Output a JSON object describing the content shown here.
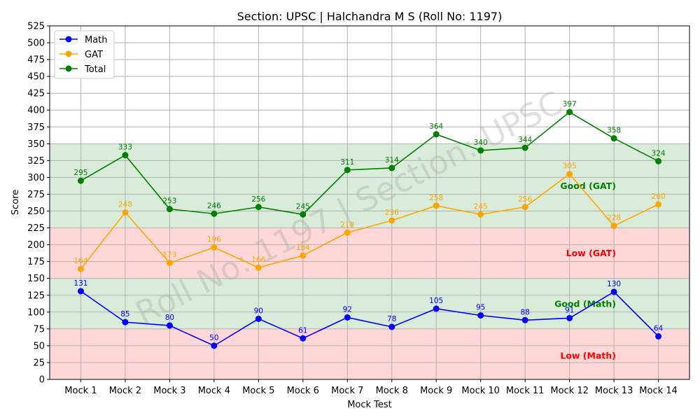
{
  "chart_data": {
    "type": "line",
    "title": "Section: UPSC | Halchandra M S (Roll No: 1197)",
    "xlabel": "Mock Test",
    "ylabel": "Score",
    "ylim": [
      0,
      525
    ],
    "yticks": [
      0,
      25,
      50,
      75,
      100,
      125,
      150,
      175,
      200,
      225,
      250,
      275,
      300,
      325,
      350,
      375,
      400,
      425,
      450,
      475,
      500,
      525
    ],
    "grid": true,
    "legend_position": "top-left",
    "categories": [
      "Mock 1",
      "Mock 2",
      "Mock 3",
      "Mock 4",
      "Mock 5",
      "Mock 6",
      "Mock 7",
      "Mock 8",
      "Mock 9",
      "Mock 10",
      "Mock 11",
      "Mock 12",
      "Mock 13",
      "Mock 14"
    ],
    "series": [
      {
        "name": "Math",
        "color": "#0000ff",
        "values": [
          131,
          85,
          80,
          50,
          90,
          61,
          92,
          78,
          105,
          95,
          88,
          91,
          130,
          64
        ]
      },
      {
        "name": "GAT",
        "color": "#ffa500",
        "values": [
          164,
          248,
          173,
          196,
          166,
          184,
          218,
          236,
          258,
          245,
          256,
          305,
          228,
          260
        ]
      },
      {
        "name": "Total",
        "color": "#008000",
        "values": [
          295,
          333,
          253,
          246,
          256,
          245,
          311,
          314,
          364,
          340,
          344,
          397,
          358,
          324
        ]
      }
    ],
    "bands": [
      {
        "label": "Low (Math)",
        "from": 0,
        "to": 75,
        "fill": "#ffd7d7",
        "label_color": "#ff0000",
        "label_y": 35
      },
      {
        "label": "Good (Math)",
        "from": 75,
        "to": 150,
        "fill": "#d9ecd9",
        "label_color": "#008000",
        "label_y": 112
      },
      {
        "label": "Low (GAT)",
        "from": 150,
        "to": 225,
        "fill": "#ffd7d7",
        "label_color": "#ff0000",
        "label_y": 187
      },
      {
        "label": "Good (GAT)",
        "from": 225,
        "to": 350,
        "fill": "#d9ecd9",
        "label_color": "#008000",
        "label_y": 287
      }
    ],
    "watermark": "Roll No: 1197 | Section: UPSC"
  }
}
